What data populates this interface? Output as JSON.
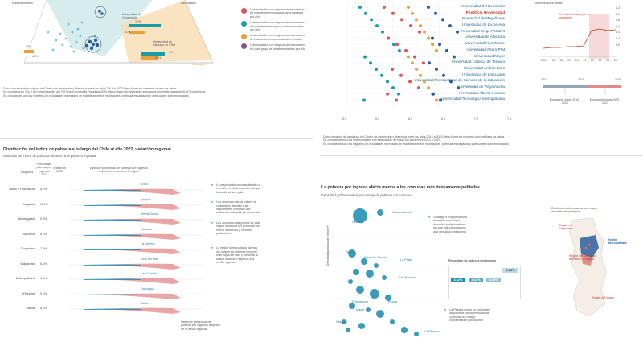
{
  "top_left": {
    "corner_label": "subvencionados",
    "node_concepcion": {
      "name": "Universidad de Concepción",
      "pct_teal": "17%",
      "pct_blue": "31%"
    },
    "node_santiago": {
      "name": "Universidad de Santiago de Chile",
      "pct_teal": "44%",
      "pct_orange": "29%"
    },
    "pct_left": "40%",
    "pct_mid": "40%",
    "axis_municipal": "Municipal",
    "corner_right": "municipales",
    "legend": [
      {
        "color": "#e0545c",
        "text": "Universidades con mayoría de estudiantes de establecimientos particulares pagados por año"
      },
      {
        "color": "#1b9aa8",
        "text": "Universidades con mayoría de estudiantes de establecimientos part. subvencionados por año"
      },
      {
        "color": "#e8a23a",
        "text": "Universidades con mayoría de estudiantes de establecimientos municipales por año"
      },
      {
        "color": "#8a4f8c",
        "text": "Universidades con mayoría de estudiantes de cada grupo de establecimientos por año"
      }
    ],
    "notes": [
      "Datos tomados de la página del Centro de Inscripción y Matrícula entre los años 2014 a 2023 https://www.ed.ucentros.cl/base-de-datos",
      "Se considera en Top 5 del Universidades del QS World University Rankings 2024 https://www.topuniversities.com/world-university-rankings/2024?countries=cl",
      "Se consideran solo los registros de estudiantes egresados de establecimientos municipales, particulares pagados y particulares subvencionados"
    ]
  },
  "top_right": {
    "universities": [
      "Universidad del Desarrollo",
      "Pontificia Universidad",
      "Universidad de Magallanes",
      "Universidad de La Serena",
      "Universidad Diego Portales",
      "Universidad de Atacama",
      "Universidad Finis Terrae",
      "Universidad Arturo Prat",
      "Universidad Mayor",
      "Universidad Católica de Temuco",
      "Universidad Andrés Bello",
      "Universidad de Los Lagos",
      "Universidad Metropolitana de Ciencias de la Educación",
      "Universidad de Playa Ancha",
      "Universidad Alberto Hurtado",
      "Universidad Tecnológica Metropolitana"
    ],
    "highlight": "Pontificia Universidad",
    "x_ticks": [
      "5.0",
      "5.5",
      "6.0",
      "6.5",
      "7.0",
      "7.5"
    ],
    "notes": [
      "Datos tomados de la página del Centro de Inscripción y Matrícula entre los años 2014 a 2023 https://www.ed.ucentros.cl/portal/base-de-datos",
      "Se consideran solo las Universidades con información de todos los años entre 2014 a 2023.",
      "Se consideran solo los registros de estudiantes egresados de establecimientos municipales, particulares pagados y particulares subvencionados"
    ]
  },
  "inset_chart": {
    "title": "de enseñanza media",
    "annotation": "Período afectado por la pandemia",
    "y_ticks": [
      "6,2",
      "6,0",
      "5,8",
      "5,6",
      "5,4",
      "5,2",
      "5,0"
    ],
    "x_ticks": [
      "2014",
      "15",
      "16",
      "17",
      "18",
      "19",
      "20",
      "21",
      "22",
      "23"
    ],
    "timeline_years": [
      "2014",
      "2020",
      "2023"
    ],
    "eval_1": "Evaluación notas 2014 - 2020",
    "eval_2": "Evaluación notas 2020 - 2023"
  },
  "bottom_left": {
    "title": "Distribución del índice de pobreza a lo largo del Chile al año 2022, variación regional",
    "subtitle": "Variación de índice de pobreza respecto a la pobreza regional",
    "col_headers": [
      "Regiones",
      "Porcentajes pobreza por ingresos 2022",
      "Población 2022",
      "Variación porcentual de pobreza por ingresos respecto a la media de la región"
    ],
    "regions": [
      {
        "name": "Arica y Parinacota",
        "pct": "8,2%",
        "pop": "…",
        "city": "Arica"
      },
      {
        "name": "Tarapacá",
        "pct": "11,0%",
        "pop": "…",
        "city": "Iquique"
      },
      {
        "name": "Antofagasta",
        "pct": "5,3%",
        "pop": "…",
        "city": "Sierra Gorda"
      },
      {
        "name": "Atacama",
        "pct": "6,2%",
        "pop": "…",
        "city": "Copiapó"
      },
      {
        "name": "Coquimbo",
        "pct": "7,9%",
        "pop": "…",
        "city": "La Serena"
      },
      {
        "name": "Valparaíso",
        "pct": "6,6%",
        "pop": "…",
        "city": "Viña del Mar"
      },
      {
        "name": "Metropolitana",
        "pct": "4,4%",
        "pop": "…",
        "city": "Las Condes"
      },
      {
        "name": "O'Higgins",
        "pct": "5,1%",
        "pop": "…",
        "city": "Rancagua"
      },
      {
        "name": "Maule",
        "pct": "6,6%",
        "pop": "…",
        "city": "Talca"
      }
    ],
    "notes": [
      "La mayoría de comunas tienden a un índice de pobreza más alto que la media de su región.",
      "Los comunas menos pobres de cada región tienden a ser mayormente comunas con desarrollo industrial y/o comercial.",
      "Las comunas más pobres de cada región tienden a ser comunas con menor desarrollo y menores poblaciones.",
      "La región Metropolitana alberga los índices de pobreza comunal más bajos del país y presenta la mayor variación respecto a la media regional."
    ],
    "legend_caption": "Variación porcentual de pobreza por ingresos respecto de la media regional"
  },
  "bottom_right": {
    "title": "La pobreza por ingreso afecta menos a las comunas más densamente pobladas",
    "subtitle": "Densidad poblacional vs porcentaje de pobreza por comuna",
    "y_axis": "Densidad poblacional (hab/km²)",
    "comunas": [
      "Independencia",
      "Santiago",
      "Ñuñoa",
      "Estación Central",
      "Lo Prado",
      "Providencia",
      "Las Condes",
      "La Florida",
      "Maipú",
      "Puente Alto",
      "San Ramón",
      "La Pintana",
      "Renca",
      "Macul",
      "Vitacura",
      "Recoleta"
    ],
    "note_1": "Santiago e Independencia muestran una mayor densidad poblacional en las que hay comunas con alta densidad poblacional.",
    "note_2": "La Pintana posee un porcentaje de pobreza por ingresos de las comunas con mayor concentración poblacional",
    "poverty_box_title": "Porcentaje de pobreza por ingreso",
    "poverty_values": [
      "3,62%",
      "4,63%",
      "5,40%",
      "7,63%"
    ],
    "map_title": "Distribución de comunas con mayor densidad de población",
    "map_labels": [
      "Región de Valparaíso",
      "Región Metropolitana",
      "Región del Libertador Bernardo O'Higgins",
      "Región del Maule"
    ]
  }
}
